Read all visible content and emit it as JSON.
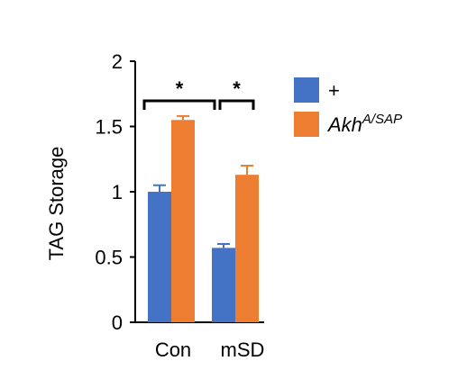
{
  "chart_data": {
    "type": "bar",
    "title": "",
    "xlabel": "",
    "ylabel": "TAG Storage",
    "ylim": [
      0,
      2
    ],
    "yticks": [
      {
        "value": 0,
        "label": "0"
      },
      {
        "value": 0.5,
        "label": "0.5"
      },
      {
        "value": 1,
        "label": "1"
      },
      {
        "value": 1.5,
        "label": "1.5"
      },
      {
        "value": 2,
        "label": "2"
      }
    ],
    "categories": [
      "Con",
      "mSD"
    ],
    "series": [
      {
        "name": "+",
        "color": "#4472C4",
        "values": [
          1.0,
          0.57
        ],
        "errors": [
          0.05,
          0.03
        ]
      },
      {
        "name_base": "Akh",
        "name_sup": "A/SAP",
        "color": "#ED7D31",
        "values": [
          1.55,
          1.13
        ],
        "errors": [
          0.03,
          0.07
        ]
      }
    ],
    "significance": [
      {
        "category": "Con",
        "label": "*"
      },
      {
        "category": "mSD",
        "label": "*"
      }
    ],
    "grid": false,
    "legend_position": "right"
  }
}
